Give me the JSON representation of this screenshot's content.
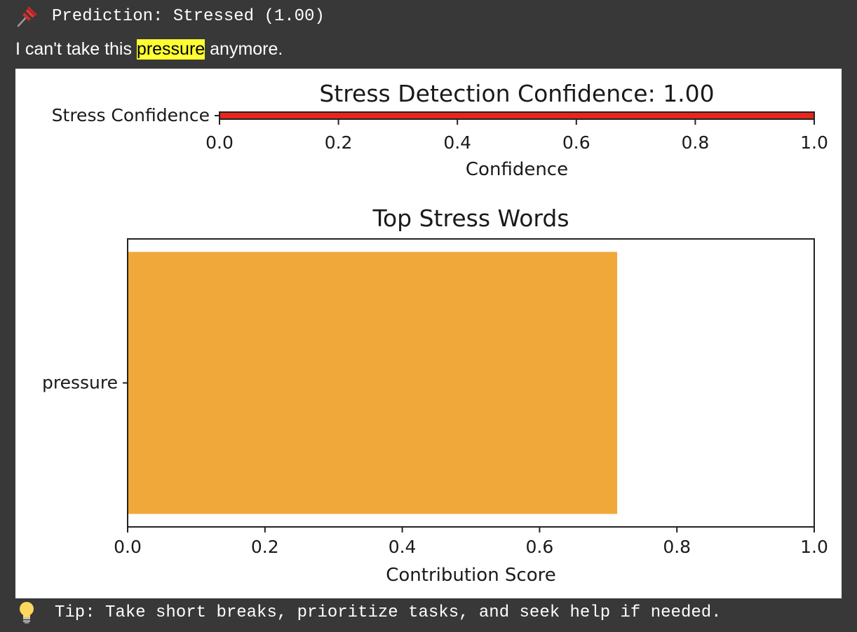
{
  "prediction": {
    "icon": "pushpin-icon",
    "text": "Prediction: Stressed (1.00)"
  },
  "sentence": {
    "before": "I can't take this ",
    "highlight": "pressure",
    "after": " anymore."
  },
  "tip": {
    "icon": "lightbulb-icon",
    "text": "Tip: Take short breaks, prioritize tasks, and seek help if needed."
  },
  "colors": {
    "confidence_bar": "#e8261b",
    "word_bar": "#f0a83a",
    "highlight": "#ffff33"
  },
  "chart_data": [
    {
      "type": "bar",
      "orientation": "horizontal",
      "title": "Stress Detection Confidence: 1.00",
      "xlabel": "Confidence",
      "ylabel": "",
      "categories": [
        "Stress Confidence"
      ],
      "values": [
        1.0
      ],
      "xlim": [
        0,
        1
      ],
      "xticks": [
        "0.0",
        "0.2",
        "0.4",
        "0.6",
        "0.8",
        "1.0"
      ],
      "grid": false
    },
    {
      "type": "bar",
      "orientation": "horizontal",
      "title": "Top Stress Words",
      "xlabel": "Contribution Score",
      "ylabel": "",
      "categories": [
        "pressure"
      ],
      "values": [
        0.713
      ],
      "xlim": [
        0,
        1
      ],
      "xticks": [
        "0.0",
        "0.2",
        "0.4",
        "0.6",
        "0.8",
        "1.0"
      ],
      "grid": false
    }
  ]
}
